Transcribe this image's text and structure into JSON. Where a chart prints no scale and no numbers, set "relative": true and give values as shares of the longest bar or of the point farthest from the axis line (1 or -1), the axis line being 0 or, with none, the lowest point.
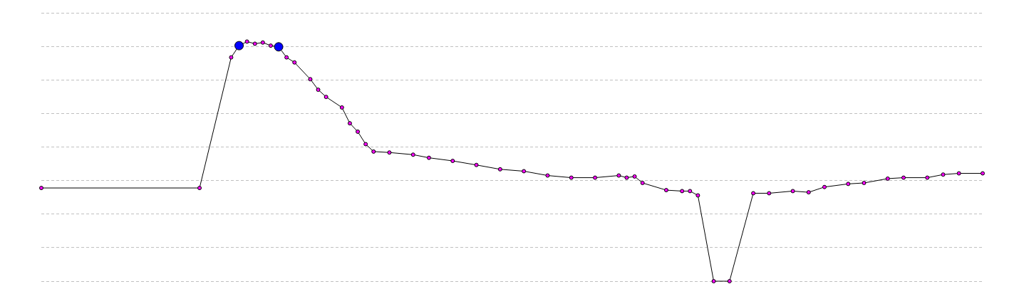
{
  "chart_data": {
    "type": "line",
    "relative": true,
    "grid": "y",
    "marker": "circle",
    "categories": [
      null,
      null,
      null,
      null,
      null,
      null,
      null,
      null,
      null,
      null,
      null,
      null,
      null,
      null,
      null,
      null,
      null,
      null,
      null,
      null,
      null,
      null,
      null,
      null,
      null,
      null,
      null,
      null,
      null,
      null,
      null,
      null,
      null,
      null,
      null,
      null,
      null,
      null,
      null,
      null,
      null,
      null,
      null,
      null,
      null,
      null,
      null,
      null,
      null,
      null,
      null,
      null,
      null,
      null,
      null,
      null,
      null,
      null,
      null,
      null,
      null,
      null,
      null,
      null,
      null,
      null,
      null,
      null,
      null,
      null,
      null,
      null,
      null,
      null,
      null,
      null,
      null,
      null,
      null,
      null,
      null,
      null,
      null,
      null,
      null,
      null,
      null,
      null,
      null,
      null,
      null,
      null,
      null,
      null,
      null,
      null,
      null,
      null,
      null,
      null,
      null,
      null,
      null,
      null,
      null,
      null,
      null,
      null,
      null,
      null,
      null,
      null,
      null,
      null,
      null,
      null,
      null,
      null,
      null,
      null
    ],
    "series": [
      {
        "color": "#000000",
        "values": [
          0.389,
          null,
          null,
          null,
          null,
          null,
          null,
          null,
          null,
          null,
          null,
          null,
          null,
          null,
          null,
          null,
          null,
          null,
          null,
          null,
          0.389,
          null,
          null,
          null,
          0.934,
          0.983,
          1.0,
          0.991,
          0.996,
          0.983,
          0.978,
          0.934,
          0.913,
          null,
          0.843,
          0.799,
          0.769,
          null,
          0.725,
          0.659,
          0.624,
          0.572,
          0.541,
          null,
          0.537,
          null,
          null,
          0.528,
          null,
          0.515,
          null,
          null,
          0.502,
          null,
          null,
          0.485,
          null,
          null,
          0.467,
          null,
          null,
          0.459,
          null,
          null,
          0.441,
          null,
          null,
          0.432,
          null,
          null,
          0.432,
          null,
          null,
          0.441,
          0.432,
          0.437,
          0.41,
          null,
          null,
          0.38,
          null,
          0.376,
          0.376,
          0.358,
          null,
          0,
          null,
          0,
          null,
          null,
          0.367,
          null,
          0.367,
          null,
          null,
          0.376,
          null,
          0.371,
          null,
          0.393,
          null,
          null,
          0.406,
          null,
          0.41,
          null,
          null,
          0.428,
          null,
          0.432,
          null,
          null,
          0.432,
          null,
          0.445,
          null,
          0.45,
          null,
          null,
          0.45
        ],
        "colors": [
          "#ff00ff",
          null,
          null,
          null,
          null,
          null,
          null,
          null,
          null,
          null,
          null,
          null,
          null,
          null,
          null,
          null,
          null,
          null,
          null,
          null,
          "#ff00ff",
          null,
          null,
          null,
          "#ff00ff",
          "#0000ff",
          "#ff00ff",
          "#ff00ff",
          "#ff00ff",
          "#ff00ff",
          "#0000ff",
          "#ff00ff",
          "#ff00ff",
          null,
          "#ff00ff",
          "#ff00ff",
          "#ff00ff",
          null,
          "#ff00ff",
          "#ff00ff",
          "#ff00ff",
          "#ff00ff",
          "#ff00ff",
          null,
          "#ff00ff",
          null,
          null,
          "#ff00ff",
          null,
          "#ff00ff",
          null,
          null,
          "#ff00ff",
          null,
          null,
          "#ff00ff",
          null,
          null,
          "#ff00ff",
          null,
          null,
          "#ff00ff",
          null,
          null,
          "#ff00ff",
          null,
          null,
          "#ff00ff",
          null,
          null,
          "#ff00ff",
          null,
          null,
          "#ff00ff",
          "#ff00ff",
          "#ff00ff",
          "#ff00ff",
          null,
          null,
          "#ff00ff",
          null,
          "#ff00ff",
          "#ff00ff",
          "#ff00ff",
          null,
          "#ff00ff",
          null,
          "#ff00ff",
          null,
          null,
          "#ff00ff",
          null,
          "#ff00ff",
          null,
          null,
          "#ff00ff",
          null,
          "#ff00ff",
          null,
          "#ff00ff",
          null,
          null,
          "#ff00ff",
          null,
          "#ff00ff",
          null,
          null,
          "#ff00ff",
          null,
          "#ff00ff",
          null,
          null,
          "#ff00ff",
          null,
          "#ff00ff",
          null,
          "#ff00ff",
          null,
          null,
          "#ff00ff"
        ]
      }
    ]
  }
}
